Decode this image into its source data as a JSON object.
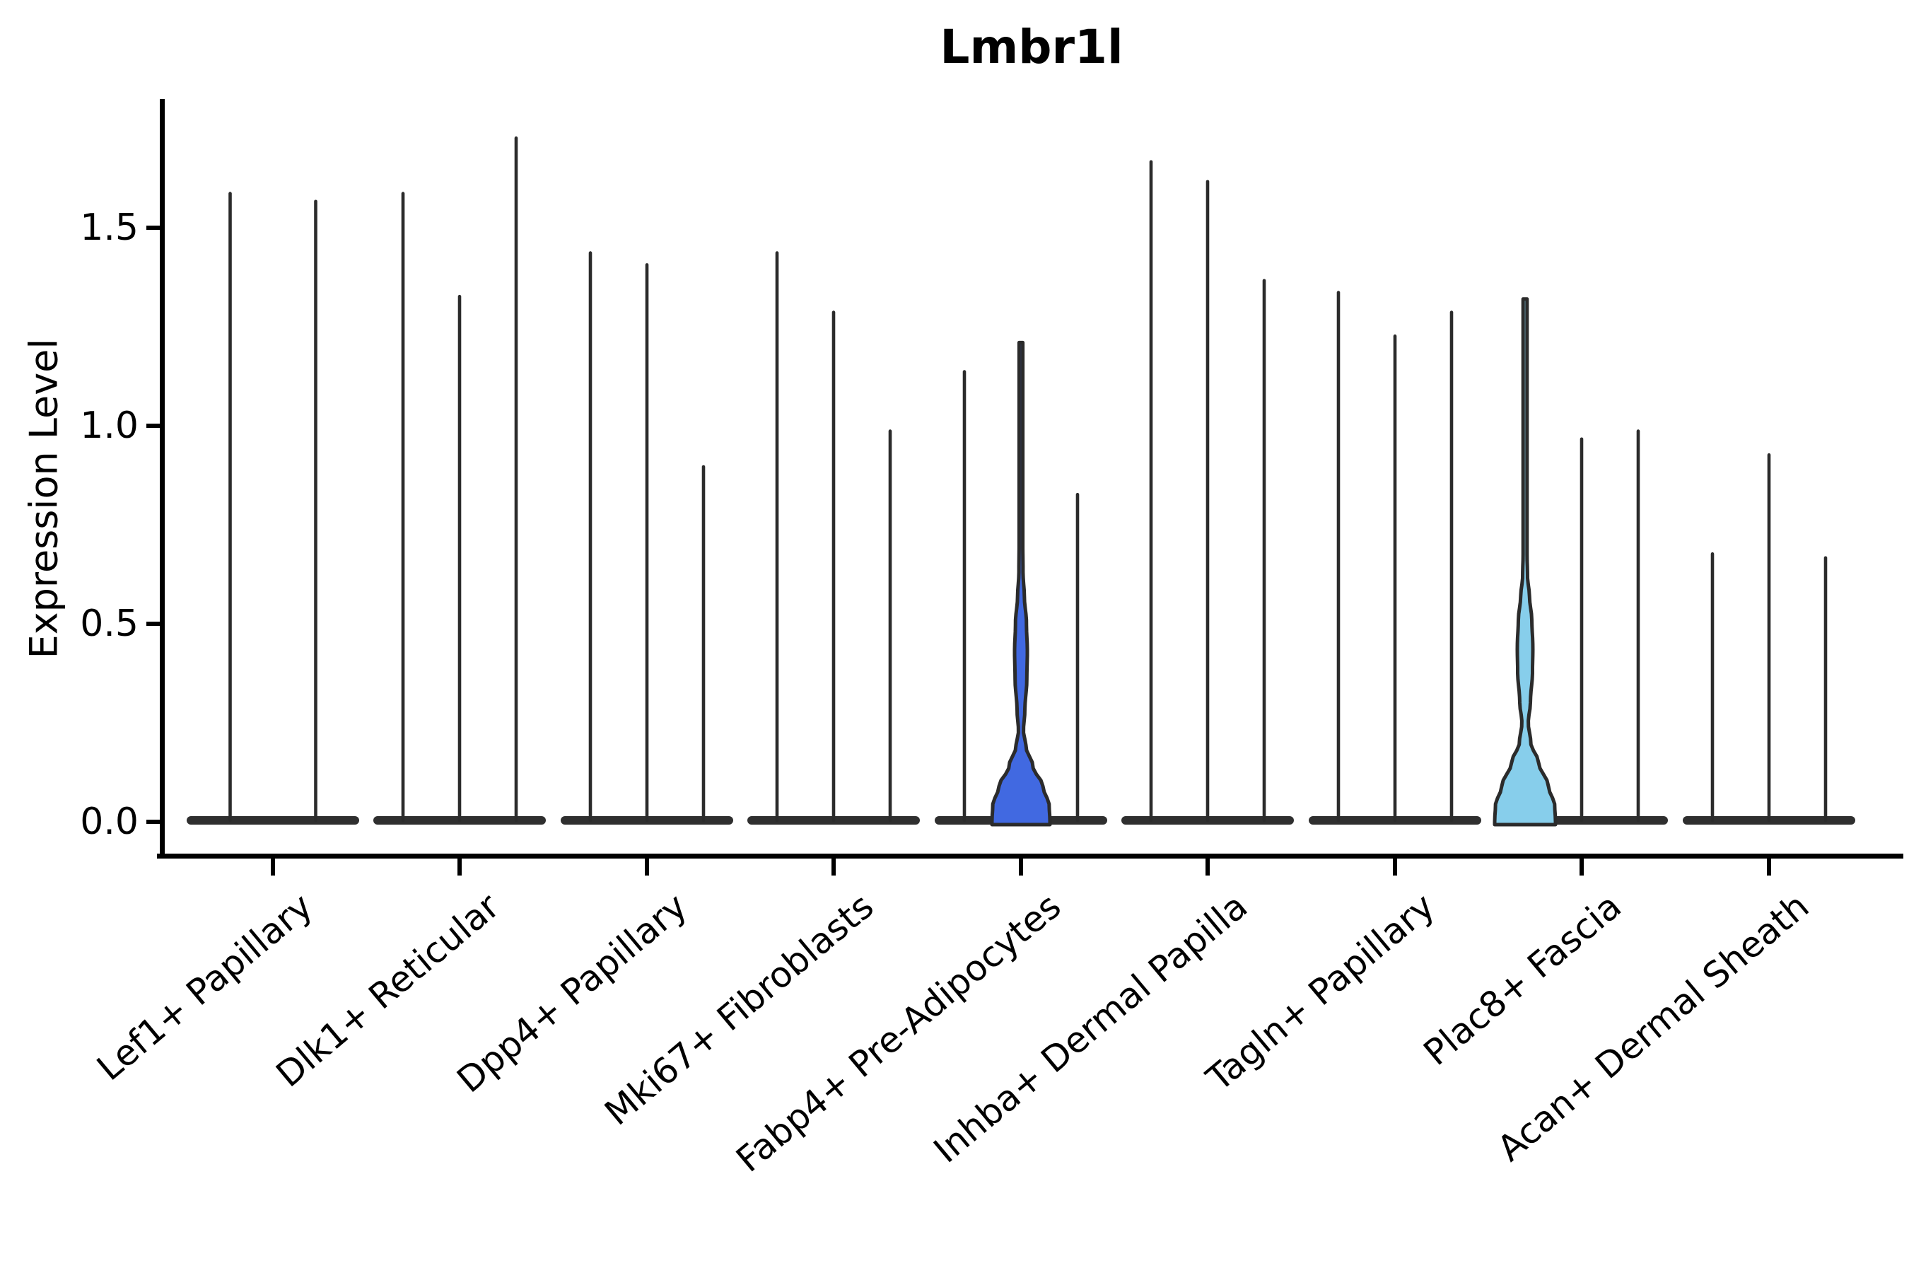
{
  "title": "Lmbr1l",
  "y_axis": {
    "label": "Expression Level",
    "tick_labels": [
      "0.0",
      "0.5",
      "1.0",
      "1.5"
    ]
  },
  "chart_data": {
    "type": "violin",
    "title": "Lmbr1l",
    "ylabel": "Expression Level",
    "ylim": [
      -0.09,
      1.83
    ],
    "yticks": [
      0.0,
      0.5,
      1.0,
      1.5
    ],
    "grid": false,
    "legend": false,
    "categories": [
      "Lef1+ Papillary",
      "Dlk1+ Reticular",
      "Dpp4+ Papillary",
      "Mki67+ Fibroblasts",
      "Fabp4+ Pre-Adipocytes",
      "Inhba+ Dermal Papilla",
      "Tagln+ Papillary",
      "Plac8+ Fascia",
      "Acan+ Dermal Sheath"
    ],
    "description": "Violin plot of Lmbr1l expression; each category holds narrow sub-violins whose mass sits at 0 with thin spikes to the max expression; one highlighted violin in Fabp4+ Pre-Adipocytes (royal blue) and one in Plac8+ Fascia (sky blue) show visible density bodies.",
    "colors": {
      "violin_edge": "#2b2b2b",
      "axis": "#000000",
      "highlight_dark_blue": "#4169E1",
      "highlight_light_blue": "#87CEEB"
    },
    "groups": [
      {
        "category": "Lef1+ Papillary",
        "violins": [
          {
            "max": 1.59
          },
          {
            "max": 1.57
          }
        ]
      },
      {
        "category": "Dlk1+ Reticular",
        "violins": [
          {
            "max": 1.59
          },
          {
            "max": 1.33
          },
          {
            "max": 1.73
          }
        ]
      },
      {
        "category": "Dpp4+ Papillary",
        "violins": [
          {
            "max": 1.44
          },
          {
            "max": 1.41
          },
          {
            "max": 0.9
          }
        ]
      },
      {
        "category": "Mki67+ Fibroblasts",
        "violins": [
          {
            "max": 1.44
          },
          {
            "max": 1.29
          },
          {
            "max": 0.99
          }
        ]
      },
      {
        "category": "Fabp4+ Pre-Adipocytes",
        "violins": [
          {
            "max": 1.14
          },
          {
            "max": 1.21,
            "fill": "#4169E1",
            "profile": [
              [
                0,
                41
              ],
              [
                0.04,
                40
              ],
              [
                0.09,
                31
              ],
              [
                0.14,
                17
              ],
              [
                0.19,
                7
              ],
              [
                0.23,
                3.5
              ],
              [
                0.28,
                5.5
              ],
              [
                0.36,
                8.3
              ],
              [
                0.43,
                9
              ],
              [
                0.5,
                7.8
              ],
              [
                0.57,
                4.8
              ],
              [
                0.63,
                2.9
              ],
              [
                0.7,
                2.6
              ]
            ]
          },
          {
            "max": 0.83
          }
        ]
      },
      {
        "category": "Inhba+ Dermal Papilla",
        "violins": [
          {
            "max": 1.67
          },
          {
            "max": 1.62
          },
          {
            "max": 1.37
          }
        ]
      },
      {
        "category": "Tagln+ Papillary",
        "violins": [
          {
            "max": 1.34
          },
          {
            "max": 1.23
          },
          {
            "max": 1.29
          }
        ]
      },
      {
        "category": "Plac8+ Fascia",
        "violins": [
          {
            "max": 1.32,
            "fill": "#87CEEB",
            "profile": [
              [
                0,
                43
              ],
              [
                0.04,
                42
              ],
              [
                0.09,
                33
              ],
              [
                0.15,
                19
              ],
              [
                0.2,
                8
              ],
              [
                0.25,
                4.5
              ],
              [
                0.3,
                7.5
              ],
              [
                0.38,
                10.5
              ],
              [
                0.44,
                11
              ],
              [
                0.51,
                9.5
              ],
              [
                0.57,
                6.2
              ],
              [
                0.62,
                3.4
              ],
              [
                0.68,
                2.8
              ]
            ]
          },
          {
            "max": 0.97
          },
          {
            "max": 0.99
          }
        ]
      },
      {
        "category": "Acan+ Dermal Sheath",
        "violins": [
          {
            "max": 0.68
          },
          {
            "max": 0.93
          },
          {
            "max": 0.67
          }
        ]
      }
    ]
  }
}
